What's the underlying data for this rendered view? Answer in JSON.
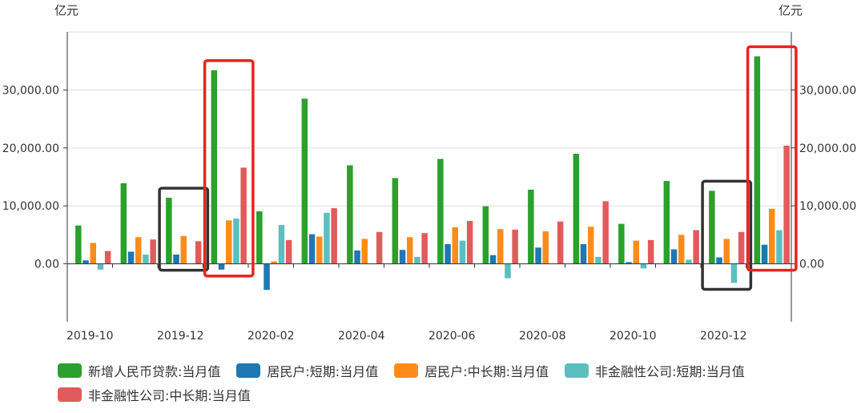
{
  "chart_data": {
    "type": "bar",
    "y_unit_left": "亿元",
    "y_unit_right": "亿元",
    "ylim": [
      -10000,
      40000
    ],
    "yticks": [
      0,
      10000,
      20000,
      30000
    ],
    "ytick_labels": [
      "0.00",
      "10,000.00",
      "20,000.00",
      "30,000.00"
    ],
    "categories": [
      "2019-10",
      "2019-11",
      "2019-12",
      "2020-01",
      "2020-02",
      "2020-03",
      "2020-04",
      "2020-05",
      "2020-06",
      "2020-07",
      "2020-08",
      "2020-09",
      "2020-10",
      "2020-11",
      "2020-12",
      "2021-01"
    ],
    "xtick_labels": [
      "2019-10",
      "2019-12",
      "2020-02",
      "2020-04",
      "2020-06",
      "2020-08",
      "2020-10",
      "2020-12"
    ],
    "series": [
      {
        "name": "新增人民币贷款:当月值",
        "color": "#2ca02c",
        "values": [
          6613,
          13900,
          11400,
          33400,
          9057,
          28500,
          17000,
          14800,
          18100,
          9927,
          12800,
          19000,
          6898,
          14300,
          12600,
          35800
        ]
      },
      {
        "name": "居民户:短期:当月值",
        "color": "#1f77b4",
        "values": [
          600,
          2100,
          1600,
          -1000,
          -4500,
          5100,
          2300,
          2400,
          3400,
          1500,
          2800,
          3400,
          300,
          2500,
          1100,
          3300
        ]
      },
      {
        "name": "居民户:中长期:当月值",
        "color": "#ff8c1a",
        "values": [
          3600,
          4600,
          4800,
          7500,
          400,
          4700,
          4300,
          4600,
          6300,
          6000,
          5600,
          6400,
          4000,
          5000,
          4300,
          9500
        ]
      },
      {
        "name": "非金融性公司:短期:当月值",
        "color": "#5bbfbf",
        "values": [
          -1000,
          1600,
          0,
          7800,
          6700,
          8800,
          0,
          1200,
          4000,
          -2500,
          0,
          1200,
          -800,
          700,
          -3300,
          5800
        ]
      },
      {
        "name": "非金融性公司:中长期:当月值",
        "color": "#e05c5c",
        "values": [
          2200,
          4200,
          3900,
          16600,
          4100,
          9600,
          5500,
          5300,
          7400,
          5900,
          7300,
          10800,
          4100,
          5800,
          5500,
          20400
        ]
      }
    ],
    "highlights": [
      {
        "color": "#333333",
        "categories": [
          "2019-12"
        ]
      },
      {
        "color": "#e8231f",
        "categories": [
          "2020-01"
        ]
      },
      {
        "color": "#333333",
        "categories": [
          "2020-12"
        ]
      },
      {
        "color": "#e8231f",
        "categories": [
          "2021-01"
        ]
      }
    ],
    "grid": true,
    "legend": "bottom"
  }
}
